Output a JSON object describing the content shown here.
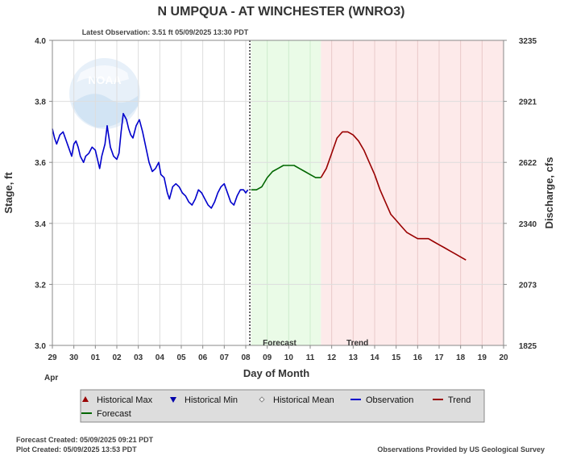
{
  "chart_data": {
    "type": "line",
    "title": "N UMPQUA - AT WINCHESTER  (WNRO3)",
    "subtitle": "Latest Observation: 3.51 ft 05/09/2025 13:30 PDT",
    "xlabel": "Day of Month",
    "xlabel_sub": "Apr",
    "ylabel": "Stage, ft",
    "ylabel_right": "Discharge, cfs",
    "xlim": [
      29,
      20
    ],
    "x_ticks": [
      "29",
      "30",
      "01",
      "02",
      "03",
      "04",
      "05",
      "06",
      "07",
      "08",
      "09",
      "10",
      "11",
      "12",
      "13",
      "14",
      "15",
      "16",
      "17",
      "18",
      "19",
      "20"
    ],
    "ylim": [
      3.0,
      4.0
    ],
    "y_ticks": [
      "3.0",
      "3.2",
      "3.4",
      "3.6",
      "3.8",
      "4.0"
    ],
    "y_right_ticks": [
      "1825",
      "2073",
      "2340",
      "2622",
      "2921",
      "3235"
    ],
    "grid": true,
    "region_labels": {
      "forecast": "Forecast",
      "trend": "Trend"
    },
    "colors": {
      "observation": "#0000cc",
      "forecast": "#006600",
      "trend": "#990000",
      "forecast_bg": "#eafbe7",
      "trend_bg": "#fdeaea"
    },
    "series": [
      {
        "name": "Observation",
        "x": [
          0,
          0.1,
          0.2,
          0.35,
          0.5,
          0.6,
          0.75,
          0.9,
          1.0,
          1.1,
          1.2,
          1.3,
          1.45,
          1.55,
          1.7,
          1.85,
          2.0,
          2.1,
          2.2,
          2.3,
          2.45,
          2.55,
          2.7,
          2.85,
          3.0,
          3.1,
          3.2,
          3.3,
          3.45,
          3.55,
          3.65,
          3.75,
          3.9,
          4.05,
          4.2,
          4.35,
          4.5,
          4.65,
          4.8,
          4.95,
          5.05,
          5.2,
          5.35,
          5.45,
          5.6,
          5.75,
          5.9,
          6.05,
          6.2,
          6.35,
          6.5,
          6.65,
          6.8,
          6.95,
          7.1,
          7.25,
          7.4,
          7.55,
          7.7,
          7.85,
          8.0,
          8.1,
          8.2,
          8.3,
          8.45,
          8.6,
          8.75,
          8.9,
          9.0,
          9.1
        ],
        "y": [
          3.71,
          3.68,
          3.66,
          3.69,
          3.7,
          3.68,
          3.65,
          3.62,
          3.66,
          3.67,
          3.65,
          3.62,
          3.6,
          3.62,
          3.63,
          3.65,
          3.64,
          3.61,
          3.58,
          3.62,
          3.66,
          3.72,
          3.65,
          3.62,
          3.61,
          3.63,
          3.7,
          3.76,
          3.74,
          3.71,
          3.69,
          3.68,
          3.72,
          3.74,
          3.7,
          3.65,
          3.6,
          3.57,
          3.58,
          3.6,
          3.56,
          3.55,
          3.5,
          3.48,
          3.52,
          3.53,
          3.52,
          3.5,
          3.49,
          3.47,
          3.46,
          3.48,
          3.51,
          3.5,
          3.48,
          3.46,
          3.45,
          3.47,
          3.5,
          3.52,
          3.53,
          3.51,
          3.49,
          3.47,
          3.46,
          3.49,
          3.51,
          3.51,
          3.5,
          3.51
        ]
      },
      {
        "name": "Forecast",
        "x": [
          9.25,
          9.5,
          9.75,
          10.0,
          10.25,
          10.5,
          10.75,
          11.0,
          11.25,
          11.5,
          11.75,
          12.0,
          12.25,
          12.5
        ],
        "y": [
          3.51,
          3.51,
          3.52,
          3.55,
          3.57,
          3.58,
          3.59,
          3.59,
          3.59,
          3.58,
          3.57,
          3.56,
          3.55,
          3.55
        ]
      },
      {
        "name": "Trend",
        "x": [
          12.5,
          12.75,
          13.0,
          13.25,
          13.5,
          13.75,
          14.0,
          14.25,
          14.5,
          14.75,
          15.0,
          15.25,
          15.5,
          15.75,
          16.0,
          16.25,
          16.5,
          16.75,
          17.0,
          17.25,
          17.5,
          17.75,
          18.0,
          18.25,
          18.5,
          18.75,
          19.0,
          19.25
        ],
        "y": [
          3.55,
          3.58,
          3.63,
          3.68,
          3.7,
          3.7,
          3.69,
          3.67,
          3.64,
          3.6,
          3.56,
          3.51,
          3.47,
          3.43,
          3.41,
          3.39,
          3.37,
          3.36,
          3.35,
          3.35,
          3.35,
          3.34,
          3.33,
          3.32,
          3.31,
          3.3,
          3.29,
          3.28
        ]
      }
    ],
    "legend_items": [
      {
        "name": "Historical Max",
        "symbol": "triangle-up",
        "color": "#990000"
      },
      {
        "name": "Historical Min",
        "symbol": "triangle-down",
        "color": "#0000aa"
      },
      {
        "name": "Historical Mean",
        "symbol": "diamond",
        "color": "#888888"
      },
      {
        "name": "Observation",
        "symbol": "line",
        "color": "#0000cc"
      },
      {
        "name": "Trend",
        "symbol": "line",
        "color": "#990000"
      },
      {
        "name": "Forecast",
        "symbol": "line",
        "color": "#006600"
      }
    ]
  },
  "footer": {
    "forecast_created": "Forecast Created: 05/09/2025 09:21 PDT",
    "plot_created": "Plot Created: 05/09/2025 13:53 PDT",
    "source": "Observations Provided by US Geological Survey"
  },
  "watermark": {
    "logo_name": "noaa-logo",
    "text": "NOAA"
  }
}
